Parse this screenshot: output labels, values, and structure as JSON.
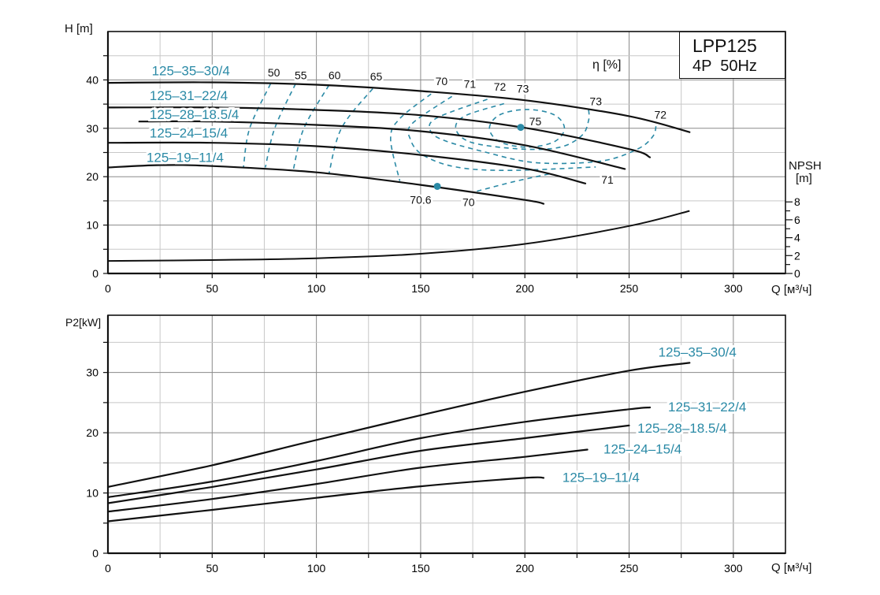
{
  "header": {
    "model": "LPP125",
    "spec": "4P  50Hz"
  },
  "colors": {
    "series_label": "#2b8aa6",
    "efficiency": "#2b8aa6",
    "curve": "#111111",
    "grid": "#c8c8c8",
    "grid_major": "#8a8a8a"
  },
  "chart_data": [
    {
      "type": "line",
      "ylabel": "H [m]",
      "xlabel": "Q [м³/ч]",
      "y2label_line1": "NPSH",
      "y2label_line2": "[m]",
      "efficiency_label": "η [%]",
      "xlim": [
        0,
        325
      ],
      "ylim": [
        0,
        50
      ],
      "y2lim": [
        0,
        27
      ],
      "xticks": [
        "0",
        "50",
        "100",
        "150",
        "200",
        "250",
        "300"
      ],
      "yticks": [
        "0",
        "10",
        "20",
        "30",
        "40"
      ],
      "y2ticks": [
        "0",
        "2",
        "4",
        "6",
        "8"
      ],
      "grid": true,
      "series": [
        {
          "name": "125-35-30/4",
          "points": [
            [
              0,
              39.4
            ],
            [
              50,
              39.5
            ],
            [
              100,
              39
            ],
            [
              150,
              37.7
            ],
            [
              200,
              35.8
            ],
            [
              250,
              32.5
            ],
            [
              279,
              29.2
            ]
          ],
          "label_at": [
            21,
            41.9
          ]
        },
        {
          "name": "125-31-22/4",
          "points": [
            [
              0,
              34.3
            ],
            [
              50,
              34.3
            ],
            [
              100,
              33.8
            ],
            [
              150,
              32.7
            ],
            [
              200,
              30.1
            ],
            [
              250,
              25.7
            ],
            [
              260,
              24
            ]
          ],
          "label_at": [
            20,
            36.8
          ]
        },
        {
          "name": "125-28-18.5/4",
          "points": [
            [
              15,
              31.4
            ],
            [
              50,
              31.4
            ],
            [
              100,
              30.7
            ],
            [
              150,
              29.4
            ],
            [
              200,
              26.5
            ],
            [
              248,
              21.6
            ]
          ],
          "label_at": [
            20,
            32.9
          ]
        },
        {
          "name": "125-24-15/4",
          "points": [
            [
              0,
              27
            ],
            [
              50,
              27
            ],
            [
              100,
              26.3
            ],
            [
              150,
              24.5
            ],
            [
              200,
              21.7
            ],
            [
              229,
              18.6
            ]
          ],
          "label_at": [
            20,
            29.1
          ]
        },
        {
          "name": "125-19-11/4",
          "points": [
            [
              0,
              21.9
            ],
            [
              25,
              22.4
            ],
            [
              50,
              22.2
            ],
            [
              100,
              20.9
            ],
            [
              150,
              18.3
            ],
            [
              200,
              15.2
            ],
            [
              209,
              14.4
            ]
          ],
          "label_at": [
            18.5,
            24
          ]
        }
      ],
      "npsh": [
        [
          0,
          1.4
        ],
        [
          50,
          1.5
        ],
        [
          100,
          1.7
        ],
        [
          150,
          2.2
        ],
        [
          200,
          3.3
        ],
        [
          250,
          5.3
        ],
        [
          279,
          7.0
        ]
      ],
      "duty_points": [
        [
          158,
          18.0
        ],
        [
          198,
          30.2
        ]
      ],
      "efficiency_contours": [
        {
          "level": 50,
          "points": [
            [
              78,
              39.2
            ],
            [
              68,
              30
            ],
            [
              65,
              21.9
            ]
          ]
        },
        {
          "level": 55,
          "points": [
            [
              90,
              39.2
            ],
            [
              80,
              30
            ],
            [
              75.5,
              21.9
            ]
          ]
        },
        {
          "level": 60,
          "points": [
            [
              106,
              38.9
            ],
            [
              94,
              30
            ],
            [
              89,
              21.6
            ]
          ]
        },
        {
          "level": 65,
          "points": [
            [
              127,
              38.2
            ],
            [
              112,
              30
            ],
            [
              106,
              20.6
            ]
          ]
        },
        {
          "level": 70,
          "points": [
            [
              155,
              37.1
            ],
            [
              140,
              32
            ],
            [
              135.6,
              27.8
            ],
            [
              140,
              19.1
            ]
          ]
        },
        {
          "level": 70,
          "points": [
            [
              177,
              17
            ],
            [
              195,
              19
            ],
            [
              212,
              20.6
            ]
          ]
        },
        {
          "level": 71,
          "points": [
            [
              165,
              36.6
            ],
            [
              146,
              31
            ],
            [
              145,
              27.8
            ],
            [
              151,
              24.5
            ],
            [
              167,
              22
            ],
            [
              192,
              21.3
            ],
            [
              234,
              22
            ]
          ]
        },
        {
          "level": 72,
          "points": [
            [
              182,
              36
            ],
            [
              158,
              32.2
            ],
            [
              154.5,
              29.7
            ],
            [
              160.6,
              27.6
            ],
            [
              180,
              25.2
            ],
            [
              205,
              22.9
            ],
            [
              236,
              23.2
            ],
            [
              254,
              25.7
            ],
            [
              261.5,
              28.4
            ],
            [
              263,
              30.9
            ]
          ]
        },
        {
          "level": 73,
          "points": [
            [
              190,
              35.1
            ],
            [
              171,
              32.5
            ],
            [
              167,
              29.7
            ],
            [
              175,
              27
            ],
            [
              199,
              25.7
            ],
            [
              217,
              26.1
            ],
            [
              227.5,
              28.6
            ],
            [
              230.6,
              31.7
            ],
            [
              230.6,
              33.8
            ]
          ]
        },
        {
          "level": 75,
          "closed": true,
          "points": [
            [
              183,
              30
            ],
            [
              188,
              32.8
            ],
            [
              201,
              33.9
            ],
            [
              214,
              32.8
            ],
            [
              219,
              30
            ],
            [
              214,
              27.2
            ],
            [
              201,
              26.1
            ],
            [
              188,
              27.2
            ]
          ]
        }
      ],
      "efficiency_annotations": [
        {
          "text": "50",
          "at": [
            79.6,
            41.5
          ]
        },
        {
          "text": "55",
          "at": [
            92.5,
            41
          ]
        },
        {
          "text": "60",
          "at": [
            108.7,
            41
          ]
        },
        {
          "text": "65",
          "at": [
            128.7,
            40.7
          ]
        },
        {
          "text": "70",
          "at": [
            160,
            39.7
          ]
        },
        {
          "text": "71",
          "at": [
            173.6,
            39.2
          ]
        },
        {
          "text": "72",
          "at": [
            188,
            38.6
          ]
        },
        {
          "text": "73",
          "at": [
            199,
            38.2
          ]
        },
        {
          "text": "75",
          "at": [
            205,
            31.4
          ]
        },
        {
          "text": "73",
          "at": [
            234,
            35.6
          ]
        },
        {
          "text": "72",
          "at": [
            265,
            32.8
          ]
        },
        {
          "text": "71",
          "at": [
            239.6,
            19.4
          ]
        },
        {
          "text": "70",
          "at": [
            173,
            14.7
          ]
        },
        {
          "text": "70.6",
          "at": [
            150,
            15.2
          ]
        }
      ]
    },
    {
      "type": "line",
      "ylabel": "P2[kW]",
      "xlabel": "Q [м³/ч]",
      "xlim": [
        0,
        325
      ],
      "ylim": [
        0,
        39.5
      ],
      "xticks": [
        "0",
        "50",
        "100",
        "150",
        "200",
        "250",
        "300"
      ],
      "yticks": [
        "0",
        "10",
        "20",
        "30"
      ],
      "grid": true,
      "series": [
        {
          "name": "125-35-30/4",
          "points": [
            [
              0,
              11
            ],
            [
              50,
              14.6
            ],
            [
              100,
              18.8
            ],
            [
              150,
              22.9
            ],
            [
              200,
              26.8
            ],
            [
              250,
              30.3
            ],
            [
              279,
              31.6
            ]
          ],
          "label_at": [
            264,
            33.4
          ]
        },
        {
          "name": "125-31-22/4",
          "points": [
            [
              0,
              9.3
            ],
            [
              50,
              11.9
            ],
            [
              100,
              15.3
            ],
            [
              150,
              19.1
            ],
            [
              200,
              21.8
            ],
            [
              250,
              23.9
            ],
            [
              260,
              24.2
            ]
          ],
          "label_at": [
            268.7,
            24.3
          ]
        },
        {
          "name": "125-28-18.5/4",
          "points": [
            [
              0,
              8.3
            ],
            [
              50,
              11
            ],
            [
              100,
              13.9
            ],
            [
              150,
              17
            ],
            [
              200,
              19.1
            ],
            [
              250,
              21.2
            ]
          ],
          "label_at": [
            254,
            20.8
          ]
        },
        {
          "name": "125-24-15/4",
          "points": [
            [
              0,
              6.9
            ],
            [
              50,
              9
            ],
            [
              100,
              11.5
            ],
            [
              150,
              14.2
            ],
            [
              200,
              16
            ],
            [
              230,
              17.2
            ]
          ],
          "label_at": [
            237.7,
            17.3
          ]
        },
        {
          "name": "125-19-11/4",
          "points": [
            [
              0,
              5.3
            ],
            [
              50,
              7.2
            ],
            [
              100,
              9.2
            ],
            [
              150,
              11.1
            ],
            [
              200,
              12.5
            ],
            [
              209,
              12.5
            ]
          ],
          "label_at": [
            218,
            12.6
          ]
        }
      ]
    }
  ]
}
